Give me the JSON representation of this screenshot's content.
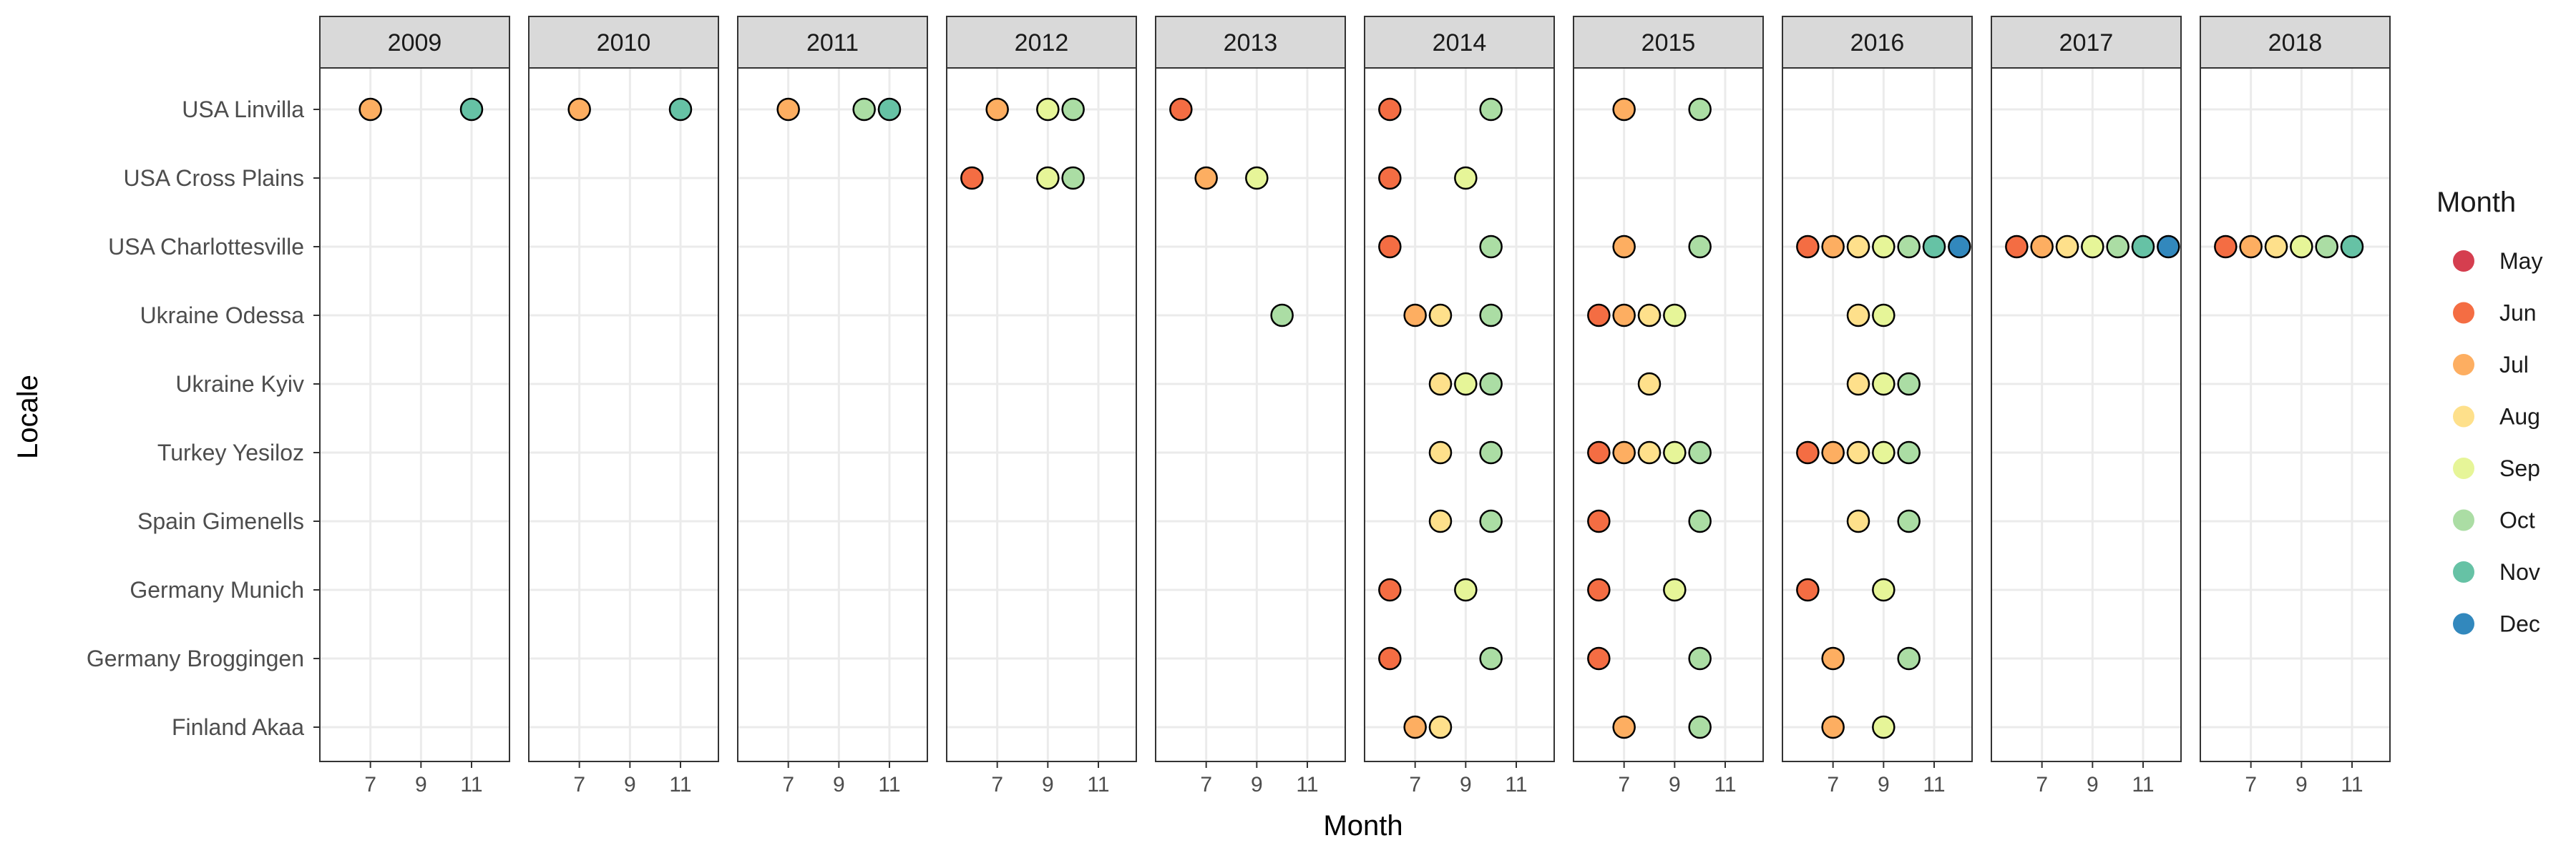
{
  "chart_data": {
    "type": "scatter",
    "facet_by": "year",
    "xlabel": "Month",
    "ylabel": "Locale",
    "xlim": [
      5,
      12.5
    ],
    "x_ticks": [
      7,
      9,
      11
    ],
    "x_tick_labels": [
      "7",
      "9",
      "11"
    ],
    "grid": true,
    "legend_position": "right",
    "legend": {
      "title": "Month",
      "items": [
        {
          "label": "May",
          "month": 5,
          "color": "#D53E4F"
        },
        {
          "label": "Jun",
          "month": 6,
          "color": "#F46D43"
        },
        {
          "label": "Jul",
          "month": 7,
          "color": "#FDAE61"
        },
        {
          "label": "Aug",
          "month": 8,
          "color": "#FEE08B"
        },
        {
          "label": "Sep",
          "month": 9,
          "color": "#E6F598"
        },
        {
          "label": "Oct",
          "month": 10,
          "color": "#ABDDA4"
        },
        {
          "label": "Nov",
          "month": 11,
          "color": "#66C2A5"
        },
        {
          "label": "Dec",
          "month": 12,
          "color": "#3288BD"
        }
      ]
    },
    "locales": [
      "USA Linvilla",
      "USA Cross Plains",
      "USA Charlottesville",
      "Ukraine Odessa",
      "Ukraine Kyiv",
      "Turkey Yesiloz",
      "Spain Gimenells",
      "Germany Munich",
      "Germany Broggingen",
      "Finland Akaa"
    ],
    "facets": [
      {
        "year": "2009",
        "points": [
          {
            "locale": "USA Linvilla",
            "months": [
              7,
              11
            ]
          }
        ]
      },
      {
        "year": "2010",
        "points": [
          {
            "locale": "USA Linvilla",
            "months": [
              7,
              11
            ]
          }
        ]
      },
      {
        "year": "2011",
        "points": [
          {
            "locale": "USA Linvilla",
            "months": [
              7,
              10,
              11
            ]
          }
        ]
      },
      {
        "year": "2012",
        "points": [
          {
            "locale": "USA Linvilla",
            "months": [
              7,
              9,
              10
            ]
          },
          {
            "locale": "USA Cross Plains",
            "months": [
              6,
              9,
              10
            ]
          }
        ]
      },
      {
        "year": "2013",
        "points": [
          {
            "locale": "USA Linvilla",
            "months": [
              6
            ]
          },
          {
            "locale": "USA Cross Plains",
            "months": [
              7,
              9
            ]
          },
          {
            "locale": "Ukraine Odessa",
            "months": [
              10
            ]
          }
        ]
      },
      {
        "year": "2014",
        "points": [
          {
            "locale": "USA Linvilla",
            "months": [
              6,
              10
            ]
          },
          {
            "locale": "USA Cross Plains",
            "months": [
              6,
              9
            ]
          },
          {
            "locale": "USA Charlottesville",
            "months": [
              6,
              10
            ]
          },
          {
            "locale": "Ukraine Odessa",
            "months": [
              7,
              8,
              10
            ]
          },
          {
            "locale": "Ukraine Kyiv",
            "months": [
              8,
              9,
              10
            ]
          },
          {
            "locale": "Turkey Yesiloz",
            "months": [
              8,
              10
            ]
          },
          {
            "locale": "Spain Gimenells",
            "months": [
              8,
              10
            ]
          },
          {
            "locale": "Germany Munich",
            "months": [
              6,
              9
            ]
          },
          {
            "locale": "Germany Broggingen",
            "months": [
              6,
              10
            ]
          },
          {
            "locale": "Finland Akaa",
            "months": [
              7,
              8
            ]
          }
        ]
      },
      {
        "year": "2015",
        "points": [
          {
            "locale": "USA Linvilla",
            "months": [
              7,
              10
            ]
          },
          {
            "locale": "USA Charlottesville",
            "months": [
              7,
              10
            ]
          },
          {
            "locale": "Ukraine Odessa",
            "months": [
              6,
              7,
              8,
              9
            ]
          },
          {
            "locale": "Ukraine Kyiv",
            "months": [
              8
            ]
          },
          {
            "locale": "Turkey Yesiloz",
            "months": [
              6,
              7,
              8,
              9,
              10
            ]
          },
          {
            "locale": "Spain Gimenells",
            "months": [
              6,
              10
            ]
          },
          {
            "locale": "Germany Munich",
            "months": [
              6,
              9
            ]
          },
          {
            "locale": "Germany Broggingen",
            "months": [
              6,
              10
            ]
          },
          {
            "locale": "Finland Akaa",
            "months": [
              7,
              10
            ]
          }
        ]
      },
      {
        "year": "2016",
        "points": [
          {
            "locale": "USA Charlottesville",
            "months": [
              6,
              7,
              8,
              9,
              10,
              11,
              12
            ]
          },
          {
            "locale": "Ukraine Odessa",
            "months": [
              8,
              9
            ]
          },
          {
            "locale": "Ukraine Kyiv",
            "months": [
              8,
              9,
              10
            ]
          },
          {
            "locale": "Turkey Yesiloz",
            "months": [
              6,
              7,
              8,
              9,
              10
            ]
          },
          {
            "locale": "Spain Gimenells",
            "months": [
              8,
              10
            ]
          },
          {
            "locale": "Germany Munich",
            "months": [
              6,
              9
            ]
          },
          {
            "locale": "Germany Broggingen",
            "months": [
              7,
              10
            ]
          },
          {
            "locale": "Finland Akaa",
            "months": [
              7,
              9
            ]
          }
        ]
      },
      {
        "year": "2017",
        "points": [
          {
            "locale": "USA Charlottesville",
            "months": [
              6,
              7,
              8,
              9,
              10,
              11,
              12
            ]
          }
        ]
      },
      {
        "year": "2018",
        "points": [
          {
            "locale": "USA Charlottesville",
            "months": [
              6,
              7,
              8,
              9,
              10,
              11
            ]
          }
        ]
      }
    ]
  }
}
